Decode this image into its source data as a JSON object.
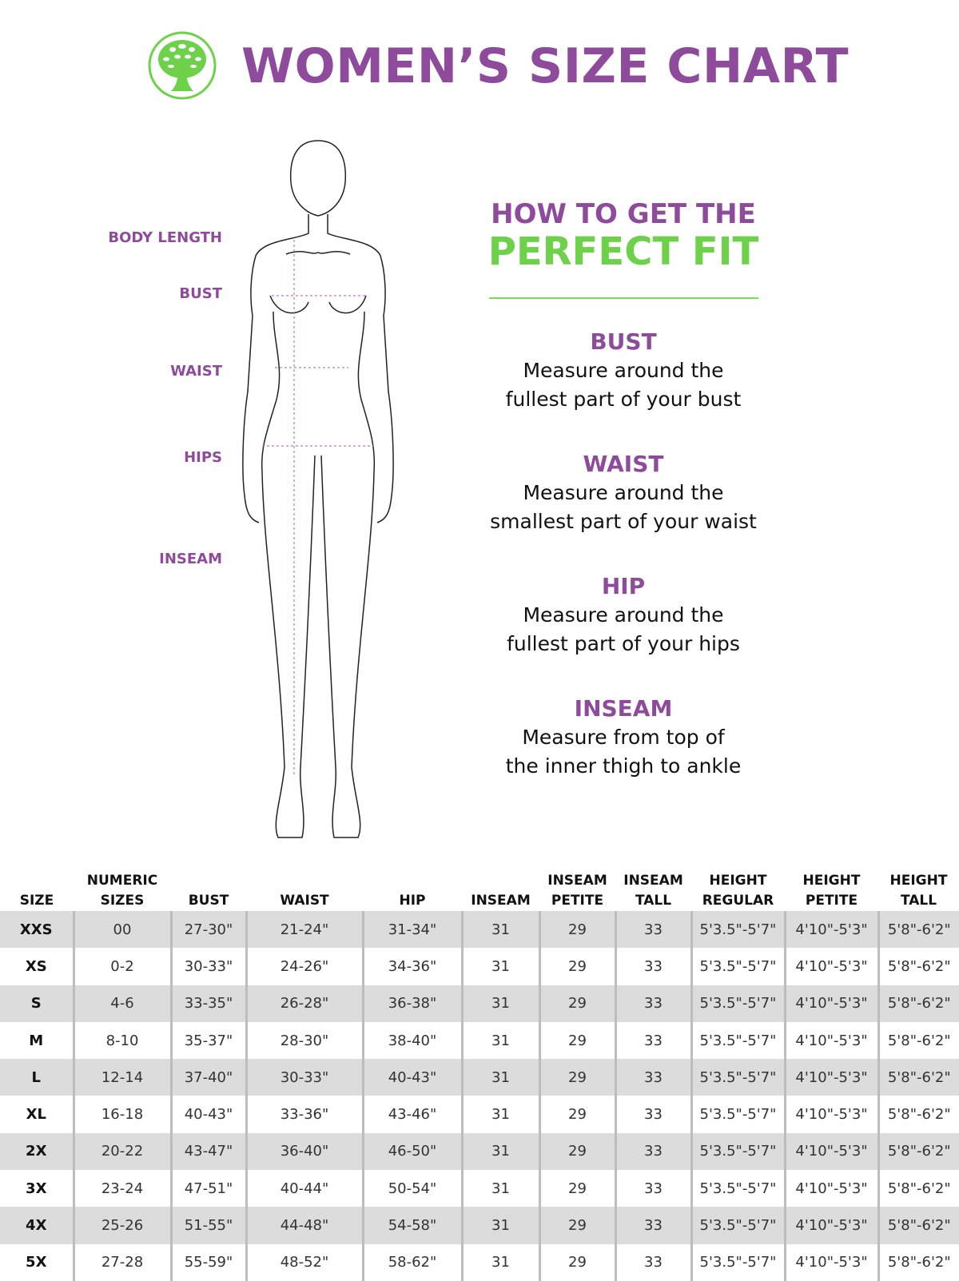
{
  "header": {
    "title": "WOMEN’S SIZE CHART",
    "logo": "tree-logo",
    "colors": {
      "purple": "#8e4a9b",
      "green": "#6dd14a"
    }
  },
  "figure_labels": [
    "BODY LENGTH",
    "BUST",
    "WAIST",
    "HIPS",
    "INSEAM"
  ],
  "guide": {
    "line1": "HOW TO GET THE",
    "line2": "PERFECT FIT",
    "tips": [
      {
        "heading": "BUST",
        "line1": "Measure around the",
        "line2": "fullest part of your bust"
      },
      {
        "heading": "WAIST",
        "line1": "Measure around the",
        "line2": "smallest part of your waist"
      },
      {
        "heading": "HIP",
        "line1": "Measure around the",
        "line2": "fullest part of your hips"
      },
      {
        "heading": "INSEAM",
        "line1": "Measure from top of",
        "line2": "the inner thigh to ankle"
      }
    ]
  },
  "table": {
    "headers": [
      [
        "SIZE",
        ""
      ],
      [
        "NUMERIC",
        "SIZES"
      ],
      [
        "BUST",
        ""
      ],
      [
        "WAIST",
        ""
      ],
      [
        "HIP",
        ""
      ],
      [
        "INSEAM",
        ""
      ],
      [
        "INSEAM",
        "PETITE"
      ],
      [
        "INSEAM",
        "TALL"
      ],
      [
        "HEIGHT",
        "REGULAR"
      ],
      [
        "HEIGHT",
        "PETITE"
      ],
      [
        "HEIGHT",
        "TALL"
      ]
    ],
    "rows": [
      [
        "XXS",
        "00",
        "27-30\"",
        "21-24\"",
        "31-34\"",
        "31",
        "29",
        "33",
        "5'3.5\"-5'7\"",
        "4'10\"-5'3\"",
        "5'8\"-6'2\""
      ],
      [
        "XS",
        "0-2",
        "30-33\"",
        "24-26\"",
        "34-36\"",
        "31",
        "29",
        "33",
        "5'3.5\"-5'7\"",
        "4'10\"-5'3\"",
        "5'8\"-6'2\""
      ],
      [
        "S",
        "4-6",
        "33-35\"",
        "26-28\"",
        "36-38\"",
        "31",
        "29",
        "33",
        "5'3.5\"-5'7\"",
        "4'10\"-5'3\"",
        "5'8\"-6'2\""
      ],
      [
        "M",
        "8-10",
        "35-37\"",
        "28-30\"",
        "38-40\"",
        "31",
        "29",
        "33",
        "5'3.5\"-5'7\"",
        "4'10\"-5'3\"",
        "5'8\"-6'2\""
      ],
      [
        "L",
        "12-14",
        "37-40\"",
        "30-33\"",
        "40-43\"",
        "31",
        "29",
        "33",
        "5'3.5\"-5'7\"",
        "4'10\"-5'3\"",
        "5'8\"-6'2\""
      ],
      [
        "XL",
        "16-18",
        "40-43\"",
        "33-36\"",
        "43-46\"",
        "31",
        "29",
        "33",
        "5'3.5\"-5'7\"",
        "4'10\"-5'3\"",
        "5'8\"-6'2\""
      ],
      [
        "2X",
        "20-22",
        "43-47\"",
        "36-40\"",
        "46-50\"",
        "31",
        "29",
        "33",
        "5'3.5\"-5'7\"",
        "4'10\"-5'3\"",
        "5'8\"-6'2\""
      ],
      [
        "3X",
        "23-24",
        "47-51\"",
        "40-44\"",
        "50-54\"",
        "31",
        "29",
        "33",
        "5'3.5\"-5'7\"",
        "4'10\"-5'3\"",
        "5'8\"-6'2\""
      ],
      [
        "4X",
        "25-26",
        "51-55\"",
        "44-48\"",
        "54-58\"",
        "31",
        "29",
        "33",
        "5'3.5\"-5'7\"",
        "4'10\"-5'3\"",
        "5'8\"-6'2\""
      ],
      [
        "5X",
        "27-28",
        "55-59\"",
        "48-52\"",
        "58-62\"",
        "31",
        "29",
        "33",
        "5'3.5\"-5'7\"",
        "4'10\"-5'3\"",
        "5'8\"-6'2\""
      ]
    ]
  }
}
